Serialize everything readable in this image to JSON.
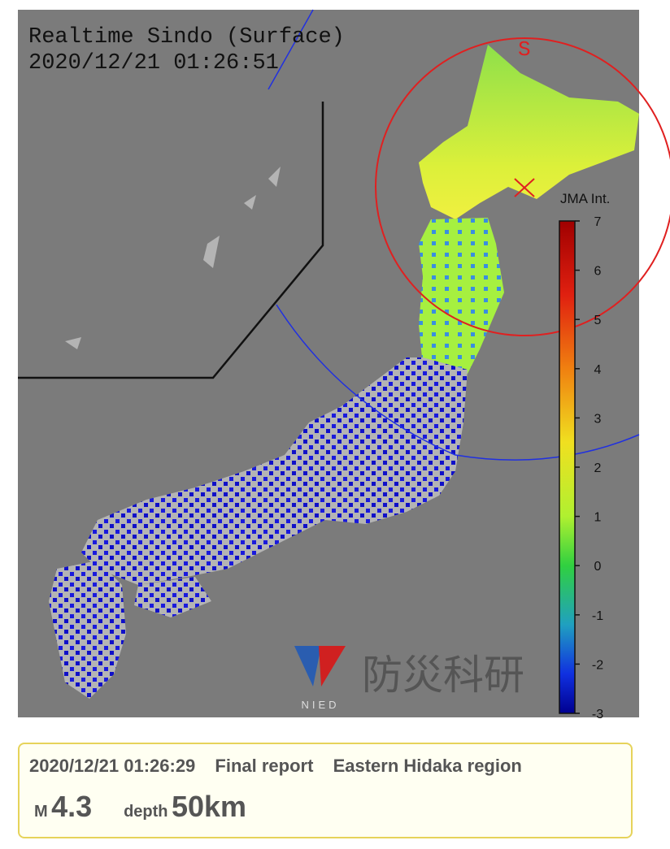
{
  "map": {
    "title": "Realtime Sindo (Surface)",
    "timestamp": "2020/12/21 01:26:51",
    "epicenter_mark": "S",
    "logo": {
      "abbr": "NIED",
      "name": "防災科研"
    }
  },
  "scale": {
    "title": "JMA Int.",
    "range": [
      -3,
      7
    ],
    "ticks": [
      7,
      6,
      5,
      4,
      3,
      2,
      1,
      0,
      -1,
      -2,
      -3
    ]
  },
  "info": {
    "time": "2020/12/21 01:26:29",
    "status": "Final report",
    "region": "Eastern Hidaka region",
    "magnitude_label": "M",
    "magnitude": 4.3,
    "depth_label": "depth",
    "depth": "50km"
  }
}
